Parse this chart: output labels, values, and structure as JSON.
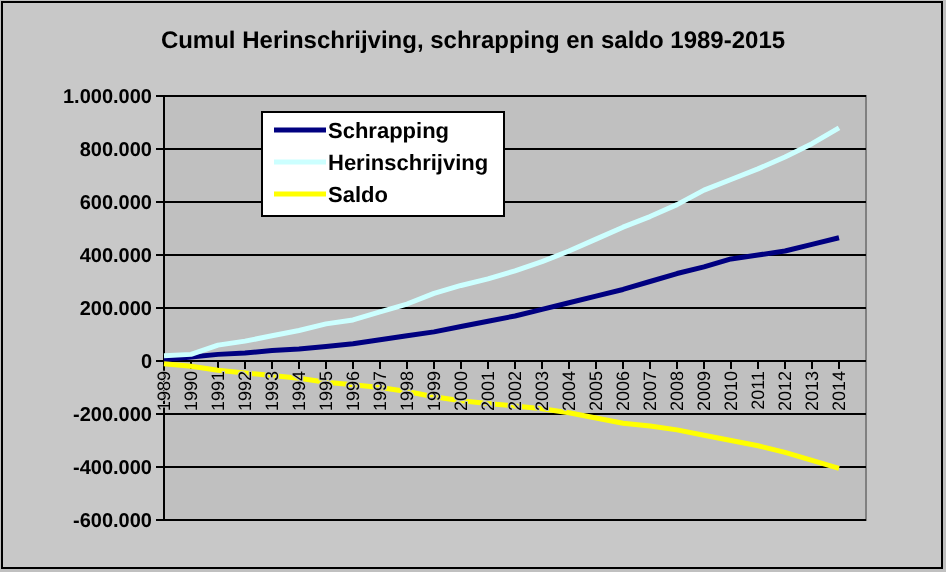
{
  "chart_data": {
    "type": "line",
    "title": "Cumul Herinschrijving, schrapping en saldo 1989-2015",
    "categories": [
      "1989",
      "1990",
      "1991",
      "1992",
      "1993",
      "1994",
      "1995",
      "1996",
      "1997",
      "1998",
      "1999",
      "2000",
      "2001",
      "2002",
      "2003",
      "2004",
      "2005",
      "2006",
      "2007",
      "2008",
      "2009",
      "2010",
      "2011",
      "2012",
      "2013",
      "2014"
    ],
    "series": [
      {
        "name": "Schrapping",
        "color": "#000080",
        "values": [
          5000,
          15000,
          25000,
          30000,
          40000,
          45000,
          55000,
          65000,
          80000,
          95000,
          110000,
          130000,
          150000,
          170000,
          195000,
          220000,
          245000,
          270000,
          300000,
          330000,
          355000,
          385000,
          400000,
          415000,
          440000,
          465000
        ]
      },
      {
        "name": "Herinschrijving",
        "color": "#ccffff",
        "values": [
          20000,
          25000,
          60000,
          75000,
          95000,
          115000,
          140000,
          155000,
          185000,
          215000,
          255000,
          285000,
          310000,
          340000,
          375000,
          415000,
          460000,
          505000,
          545000,
          590000,
          645000,
          685000,
          725000,
          770000,
          820000,
          880000
        ]
      },
      {
        "name": "Saldo",
        "color": "#ffff00",
        "values": [
          -10000,
          -20000,
          -35000,
          -45000,
          -55000,
          -65000,
          -80000,
          -90000,
          -100000,
          -115000,
          -135000,
          -150000,
          -160000,
          -170000,
          -180000,
          -195000,
          -215000,
          -235000,
          -245000,
          -260000,
          -280000,
          -300000,
          -320000,
          -345000,
          -375000,
          -405000
        ]
      }
    ],
    "ylim": [
      -600000,
      1000000
    ],
    "yticks": [
      {
        "value": -600000,
        "label": "-600.000"
      },
      {
        "value": -400000,
        "label": "-400.000"
      },
      {
        "value": -200000,
        "label": "-200.000"
      },
      0,
      {
        "value": 200000,
        "label": "200.000"
      },
      {
        "value": 400000,
        "label": "400.000"
      },
      {
        "value": 600000,
        "label": "600.000"
      },
      {
        "value": 800000,
        "label": "800.000"
      },
      {
        "value": 1000000,
        "label": "1.000.000"
      }
    ],
    "grid": "y",
    "legend": "top left",
    "marker": "none",
    "line_style": "solid"
  }
}
